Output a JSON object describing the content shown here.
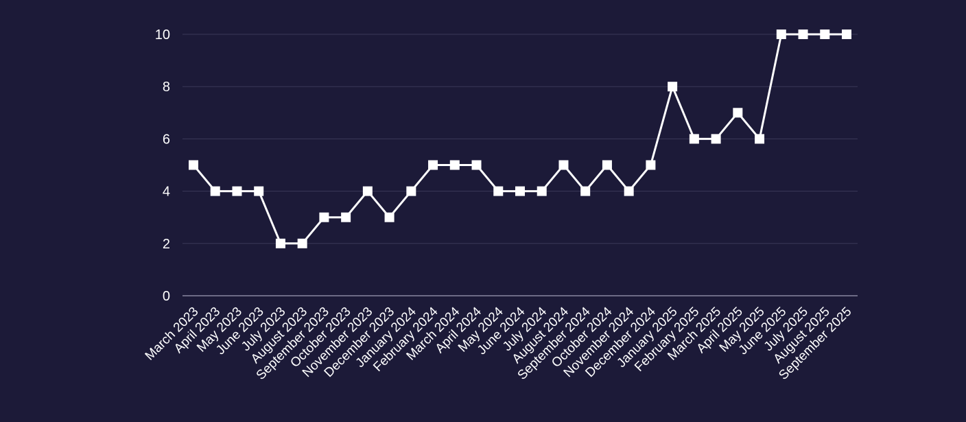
{
  "chart_data": {
    "type": "line",
    "title": "",
    "xlabel": "",
    "ylabel": "",
    "categories": [
      "March 2023",
      "April 2023",
      "May 2023",
      "June 2023",
      "July 2023",
      "August 2023",
      "September 2023",
      "October 2023",
      "November 2023",
      "December 2023",
      "January 2024",
      "February 2024",
      "March 2024",
      "April 2024",
      "May 2024",
      "June 2024",
      "July 2024",
      "August 2024",
      "September 2024",
      "October 2024",
      "November 2024",
      "December 2024",
      "January 2025",
      "February 2025",
      "March 2025",
      "April 2025",
      "May 2025",
      "June 2025",
      "July 2025",
      "August 2025",
      "September 2025"
    ],
    "values": [
      5,
      4,
      4,
      4,
      2,
      2,
      3,
      3,
      4,
      3,
      4,
      5,
      5,
      5,
      4,
      4,
      4,
      5,
      4,
      5,
      4,
      5,
      8,
      6,
      6,
      7,
      6,
      10,
      10,
      10,
      10
    ],
    "ylim": [
      0,
      10
    ],
    "yticks": [
      0,
      2,
      4,
      6,
      8,
      10
    ],
    "grid": true,
    "legend": "none",
    "marker": "square",
    "colors": {
      "background": "#1c1a38",
      "line": "#ffffff",
      "grid": "#3a3858",
      "axis": "#8a88a0",
      "text": "#ffffff"
    }
  }
}
